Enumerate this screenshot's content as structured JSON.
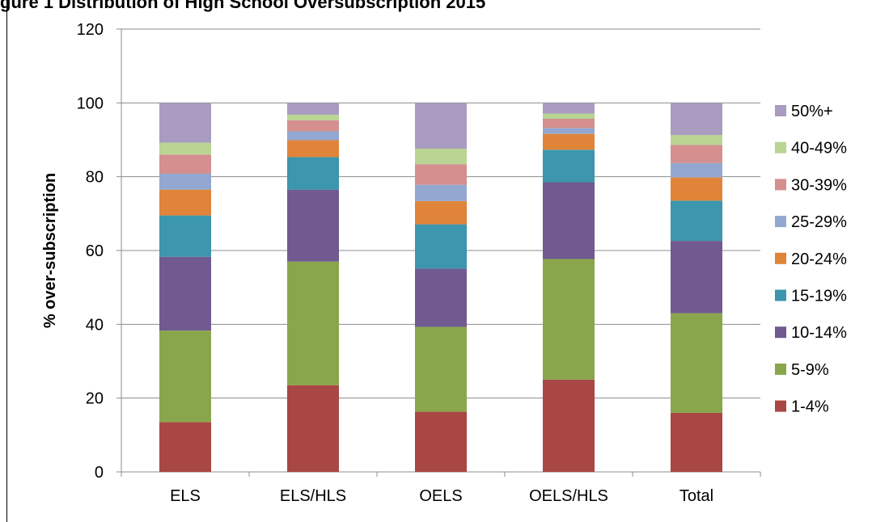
{
  "page": {
    "title_fragment": "gure 1 Distribution of High School Oversubscription 2015"
  },
  "chart_data": {
    "type": "bar",
    "stacked": true,
    "title": "",
    "xlabel": "",
    "ylabel": "% over-subscription",
    "ylim": [
      0,
      120
    ],
    "yticks": [
      "0",
      "20",
      "40",
      "60",
      "80",
      "100",
      "120"
    ],
    "grid": true,
    "legend_position": "right",
    "categories": [
      "ELS",
      "ELS/HLS",
      "OELS",
      "OELS/HLS",
      "Total"
    ],
    "series": [
      {
        "name": "1-4%",
        "color": "#a84744",
        "values": [
          13.5,
          23.5,
          16.3,
          25.0,
          16.0
        ]
      },
      {
        "name": "5-9%",
        "color": "#8aa64c",
        "values": [
          24.8,
          33.5,
          23.0,
          32.7,
          27.0
        ]
      },
      {
        "name": "10-14%",
        "color": "#705a90",
        "values": [
          20.0,
          19.5,
          15.8,
          20.8,
          19.6
        ]
      },
      {
        "name": "15-19%",
        "color": "#3c96ad",
        "values": [
          11.2,
          8.8,
          12.0,
          8.8,
          10.9
        ]
      },
      {
        "name": "20-24%",
        "color": "#e0843a",
        "values": [
          7.0,
          4.6,
          6.3,
          4.3,
          6.3
        ]
      },
      {
        "name": "25-29%",
        "color": "#92a8d0",
        "values": [
          4.3,
          2.4,
          4.4,
          1.6,
          3.9
        ]
      },
      {
        "name": "30-39%",
        "color": "#d48f8e",
        "values": [
          5.2,
          3.0,
          5.6,
          2.5,
          4.9
        ]
      },
      {
        "name": "40-49%",
        "color": "#b9d493",
        "values": [
          3.2,
          1.5,
          4.2,
          1.4,
          2.7
        ]
      },
      {
        "name": "50%+",
        "color": "#a99cc0",
        "values": [
          10.8,
          3.2,
          12.4,
          2.9,
          8.7
        ]
      }
    ]
  }
}
